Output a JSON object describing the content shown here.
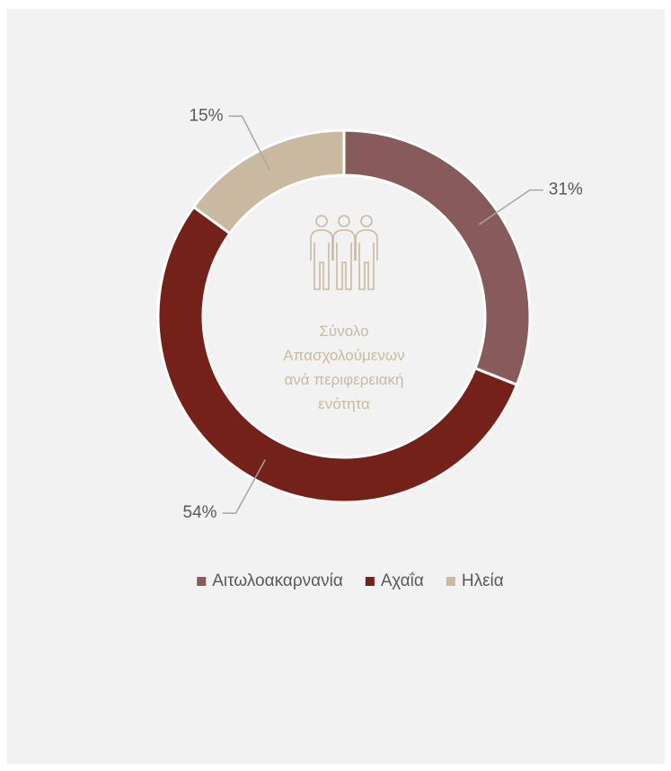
{
  "chart_data": {
    "type": "donut",
    "categories": [
      "Αιτωλοακαρνανία",
      "Αχαΐα",
      "Ηλεία"
    ],
    "values": [
      31,
      54,
      15
    ],
    "value_labels": [
      "31%",
      "54%",
      "15%"
    ],
    "colors": [
      "#875b5b",
      "#74211a",
      "#c9b9a1"
    ],
    "center_label": "Σύνολο Απασχολούμενων ανά περιφερειακή ενότητα",
    "legend": "bottom"
  }
}
